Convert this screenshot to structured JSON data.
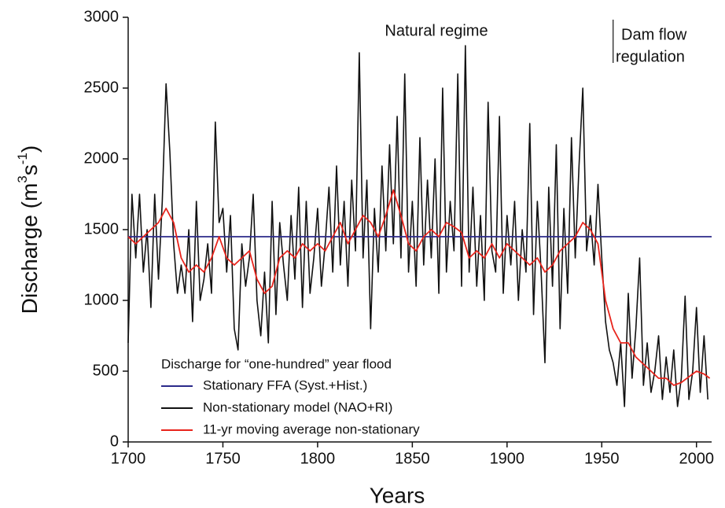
{
  "chart_data": {
    "type": "line",
    "xlabel": "Years",
    "ylabel": [
      "Discharge (m",
      "3",
      "s",
      "-1",
      ")"
    ],
    "annotations": [
      "Natural regime",
      "Dam flow",
      "regulation"
    ],
    "divider_x": 1956,
    "legend_title": "Discharge for “one-hundred” year flood",
    "xlim": [
      1700,
      2008
    ],
    "ylim": [
      0,
      3000
    ],
    "xticks": [
      1700,
      1750,
      1800,
      1850,
      1900,
      1950,
      2000
    ],
    "yticks": [
      0,
      500,
      1000,
      1500,
      2000,
      2500,
      3000
    ],
    "series": [
      {
        "name": "Stationary FFA (Syst.+Hist.)",
        "color": "#2b2a8a",
        "x": [
          1700,
          2008
        ],
        "values": [
          1450,
          1450
        ]
      },
      {
        "name": "Non-stationary model (NAO+RI)",
        "color": "#111111",
        "x": [
          1700,
          1702,
          1704,
          1706,
          1708,
          1710,
          1712,
          1714,
          1716,
          1718,
          1720,
          1722,
          1724,
          1726,
          1728,
          1730,
          1732,
          1734,
          1736,
          1738,
          1740,
          1742,
          1744,
          1746,
          1748,
          1750,
          1752,
          1754,
          1756,
          1758,
          1760,
          1762,
          1764,
          1766,
          1768,
          1770,
          1772,
          1774,
          1776,
          1778,
          1780,
          1782,
          1784,
          1786,
          1788,
          1790,
          1792,
          1794,
          1796,
          1798,
          1800,
          1802,
          1804,
          1806,
          1808,
          1810,
          1812,
          1814,
          1816,
          1818,
          1820,
          1822,
          1824,
          1826,
          1828,
          1830,
          1832,
          1834,
          1836,
          1838,
          1840,
          1842,
          1844,
          1846,
          1848,
          1850,
          1852,
          1854,
          1856,
          1858,
          1860,
          1862,
          1864,
          1866,
          1868,
          1870,
          1872,
          1874,
          1876,
          1878,
          1880,
          1882,
          1884,
          1886,
          1888,
          1890,
          1892,
          1894,
          1896,
          1898,
          1900,
          1902,
          1904,
          1906,
          1908,
          1910,
          1912,
          1914,
          1916,
          1918,
          1920,
          1922,
          1924,
          1926,
          1928,
          1930,
          1932,
          1934,
          1936,
          1938,
          1940,
          1942,
          1944,
          1946,
          1948,
          1950,
          1952,
          1954,
          1956,
          1958,
          1960,
          1962,
          1964,
          1966,
          1968,
          1970,
          1972,
          1974,
          1976,
          1978,
          1980,
          1982,
          1984,
          1986,
          1988,
          1990,
          1992,
          1994,
          1996,
          1998,
          2000,
          2002,
          2004,
          2006
        ],
        "values": [
          700,
          1750,
          1300,
          1750,
          1200,
          1500,
          950,
          1750,
          1150,
          1700,
          2530,
          2050,
          1400,
          1050,
          1250,
          1050,
          1500,
          850,
          1700,
          1000,
          1150,
          1400,
          1050,
          2260,
          1550,
          1650,
          1200,
          1600,
          800,
          650,
          1400,
          1100,
          1300,
          1750,
          1000,
          750,
          1200,
          700,
          1700,
          900,
          1550,
          1250,
          1000,
          1600,
          1150,
          1800,
          950,
          1700,
          1050,
          1300,
          1650,
          1100,
          1400,
          1800,
          1200,
          1950,
          1250,
          1700,
          1100,
          1850,
          1350,
          2750,
          1300,
          1850,
          800,
          1650,
          1200,
          1950,
          1350,
          2100,
          1400,
          2300,
          1300,
          2600,
          1200,
          1700,
          1100,
          2150,
          1250,
          1850,
          1300,
          2000,
          1050,
          2500,
          1200,
          1700,
          1350,
          2600,
          1100,
          2800,
          1200,
          1800,
          1100,
          1600,
          1000,
          2400,
          1350,
          1200,
          2300,
          1050,
          1600,
          1250,
          1700,
          1000,
          1500,
          1200,
          2250,
          900,
          1700,
          1200,
          560,
          1800,
          1100,
          2100,
          800,
          1650,
          1050,
          2150,
          1300,
          1950,
          2500,
          1350,
          1600,
          1250,
          1820,
          1300,
          850,
          650,
          560,
          400,
          700,
          250,
          1050,
          450,
          800,
          1300,
          400,
          700,
          350,
          500,
          750,
          300,
          600,
          350,
          650,
          250,
          450,
          1030,
          300,
          500,
          950,
          350,
          750,
          300
        ]
      },
      {
        "name": "11-yr moving average non-stationary",
        "color": "#e8241c",
        "x": [
          1700,
          1704,
          1708,
          1712,
          1716,
          1720,
          1724,
          1728,
          1732,
          1736,
          1740,
          1744,
          1748,
          1752,
          1756,
          1760,
          1764,
          1768,
          1772,
          1776,
          1780,
          1784,
          1788,
          1792,
          1796,
          1800,
          1804,
          1808,
          1812,
          1816,
          1820,
          1824,
          1828,
          1832,
          1836,
          1840,
          1844,
          1848,
          1852,
          1856,
          1860,
          1864,
          1868,
          1872,
          1876,
          1880,
          1884,
          1888,
          1892,
          1896,
          1900,
          1904,
          1908,
          1912,
          1916,
          1920,
          1924,
          1928,
          1932,
          1936,
          1940,
          1944,
          1948,
          1952,
          1956,
          1960,
          1964,
          1968,
          1972,
          1976,
          1980,
          1984,
          1988,
          1992,
          1996,
          2000,
          2004,
          2007
        ],
        "values": [
          1450,
          1400,
          1450,
          1500,
          1550,
          1650,
          1550,
          1300,
          1200,
          1250,
          1200,
          1300,
          1450,
          1300,
          1250,
          1300,
          1350,
          1150,
          1050,
          1100,
          1300,
          1350,
          1300,
          1400,
          1350,
          1400,
          1350,
          1450,
          1550,
          1400,
          1500,
          1600,
          1550,
          1450,
          1600,
          1780,
          1600,
          1400,
          1350,
          1450,
          1500,
          1450,
          1550,
          1520,
          1480,
          1300,
          1350,
          1300,
          1400,
          1300,
          1400,
          1350,
          1300,
          1250,
          1300,
          1200,
          1250,
          1350,
          1400,
          1450,
          1550,
          1500,
          1400,
          1000,
          800,
          700,
          700,
          600,
          550,
          500,
          450,
          450,
          400,
          420,
          460,
          500,
          480,
          450
        ]
      }
    ]
  }
}
